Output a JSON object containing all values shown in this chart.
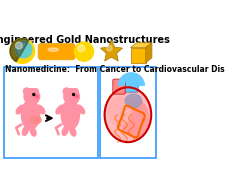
{
  "title1": "Engineered Gold Nanostructures",
  "title2": "Nanomedicine:  From Cancer to Cardiovascular Disease",
  "bg_color": "#ffffff",
  "border_color": "#3399ff",
  "gold_yellow": "#FFD700",
  "gold_dark": "#DAA520",
  "gold_orange": "#FFA500",
  "pink_light": "#FFB6C1",
  "pink_medium": "#FF91A4",
  "pink_dark": "#FF69B4",
  "heart_red": "#CC0000",
  "heart_pink": "#FF9999",
  "heart_blue": "#6699CC",
  "heart_orange": "#FF8C00",
  "heart_purple": "#9999CC",
  "heart_lightblue": "#66CCFF"
}
